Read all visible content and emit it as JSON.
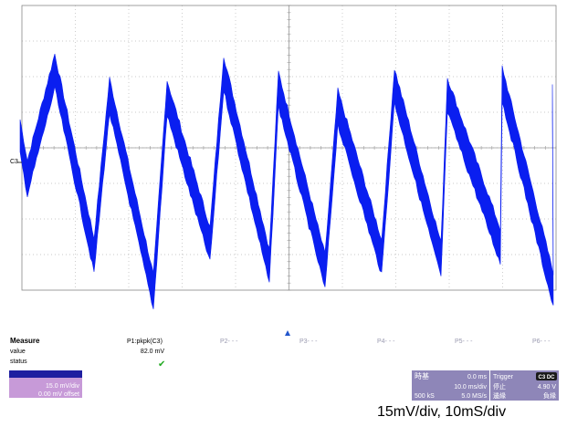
{
  "grid": {
    "h_divs": 10,
    "v_divs": 8
  },
  "channel": {
    "marker_label": "C3",
    "volts_per_div": "15.0 mV/div",
    "offset": "0.00 mV offset",
    "trace_color": "#0a1ef0"
  },
  "measure": {
    "header": "Measure",
    "row_labels": [
      "value",
      "status"
    ],
    "p1": {
      "name": "P1:pkpk(C3)",
      "value": "82.0 mV",
      "status": "✔"
    },
    "other_params": [
      "P2- - -",
      "P3- - -",
      "P4- - -",
      "P5- - -",
      "P6- - -"
    ]
  },
  "timebase": {
    "title": "時基",
    "delay": "0.0 ms",
    "time_per_div": "10.0 ms/div",
    "samples": "500 kS",
    "sample_rate": "5.0 MS/s"
  },
  "trigger": {
    "title": "Trigger",
    "badge": "C3 DC",
    "mode": "停止",
    "level": "4.90 V",
    "type": "邊緣",
    "slope": "負緣"
  },
  "caption": "15mV/div, 10mS/div"
}
